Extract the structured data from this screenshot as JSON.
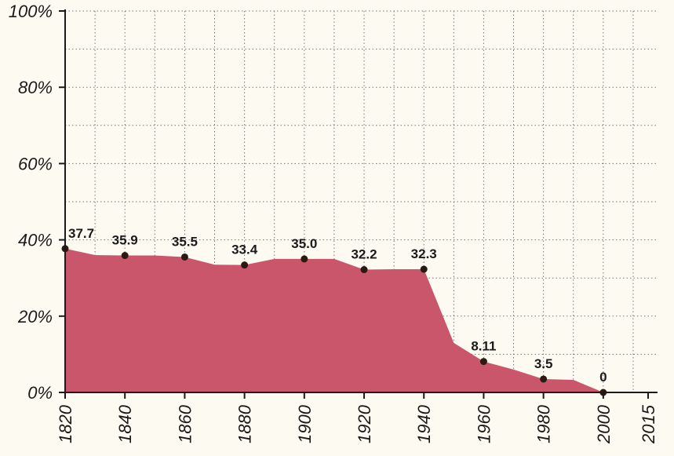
{
  "chart_data": {
    "type": "area",
    "x": [
      1820,
      1830,
      1840,
      1850,
      1860,
      1870,
      1880,
      1890,
      1900,
      1910,
      1920,
      1930,
      1940,
      1950,
      1960,
      1970,
      1980,
      1990,
      2000
    ],
    "series": [
      {
        "color": "#c9566a",
        "values": [
          37.7,
          36.0,
          35.9,
          35.9,
          35.5,
          33.5,
          33.4,
          35.0,
          35.0,
          35.0,
          32.2,
          32.3,
          32.3,
          13.0,
          8.11,
          6.0,
          3.5,
          3.3,
          0
        ],
        "value_labels": [
          "37.7",
          null,
          "35.9",
          null,
          "35.5",
          null,
          "33.4",
          null,
          "35.0",
          null,
          "32.2",
          null,
          "32.3",
          null,
          "8.11",
          null,
          "3.5",
          null,
          "0"
        ]
      }
    ],
    "marker_color": "#2b1a12",
    "xlim": [
      1820,
      2015
    ],
    "xticks": [
      1820,
      1840,
      1860,
      1880,
      1900,
      1920,
      1940,
      1960,
      1980,
      2000,
      2015
    ],
    "ylim": [
      0,
      100
    ],
    "yticks": [
      {
        "value": 0,
        "label": "0%"
      },
      {
        "value": 20,
        "label": "20%"
      },
      {
        "value": 40,
        "label": "40%"
      },
      {
        "value": 60,
        "label": "60%"
      },
      {
        "value": 80,
        "label": "80%"
      },
      {
        "value": 100,
        "label": "100%"
      }
    ],
    "x_grid": [
      1830,
      1840,
      1850,
      1860,
      1870,
      1880,
      1890,
      1900,
      1910,
      1920,
      1930,
      1940,
      1950,
      1960,
      1970,
      1980,
      1990,
      2000,
      2010
    ],
    "y_grid": [
      10,
      20,
      30,
      40,
      50,
      60,
      70,
      80,
      90,
      100
    ],
    "grid": true
  }
}
